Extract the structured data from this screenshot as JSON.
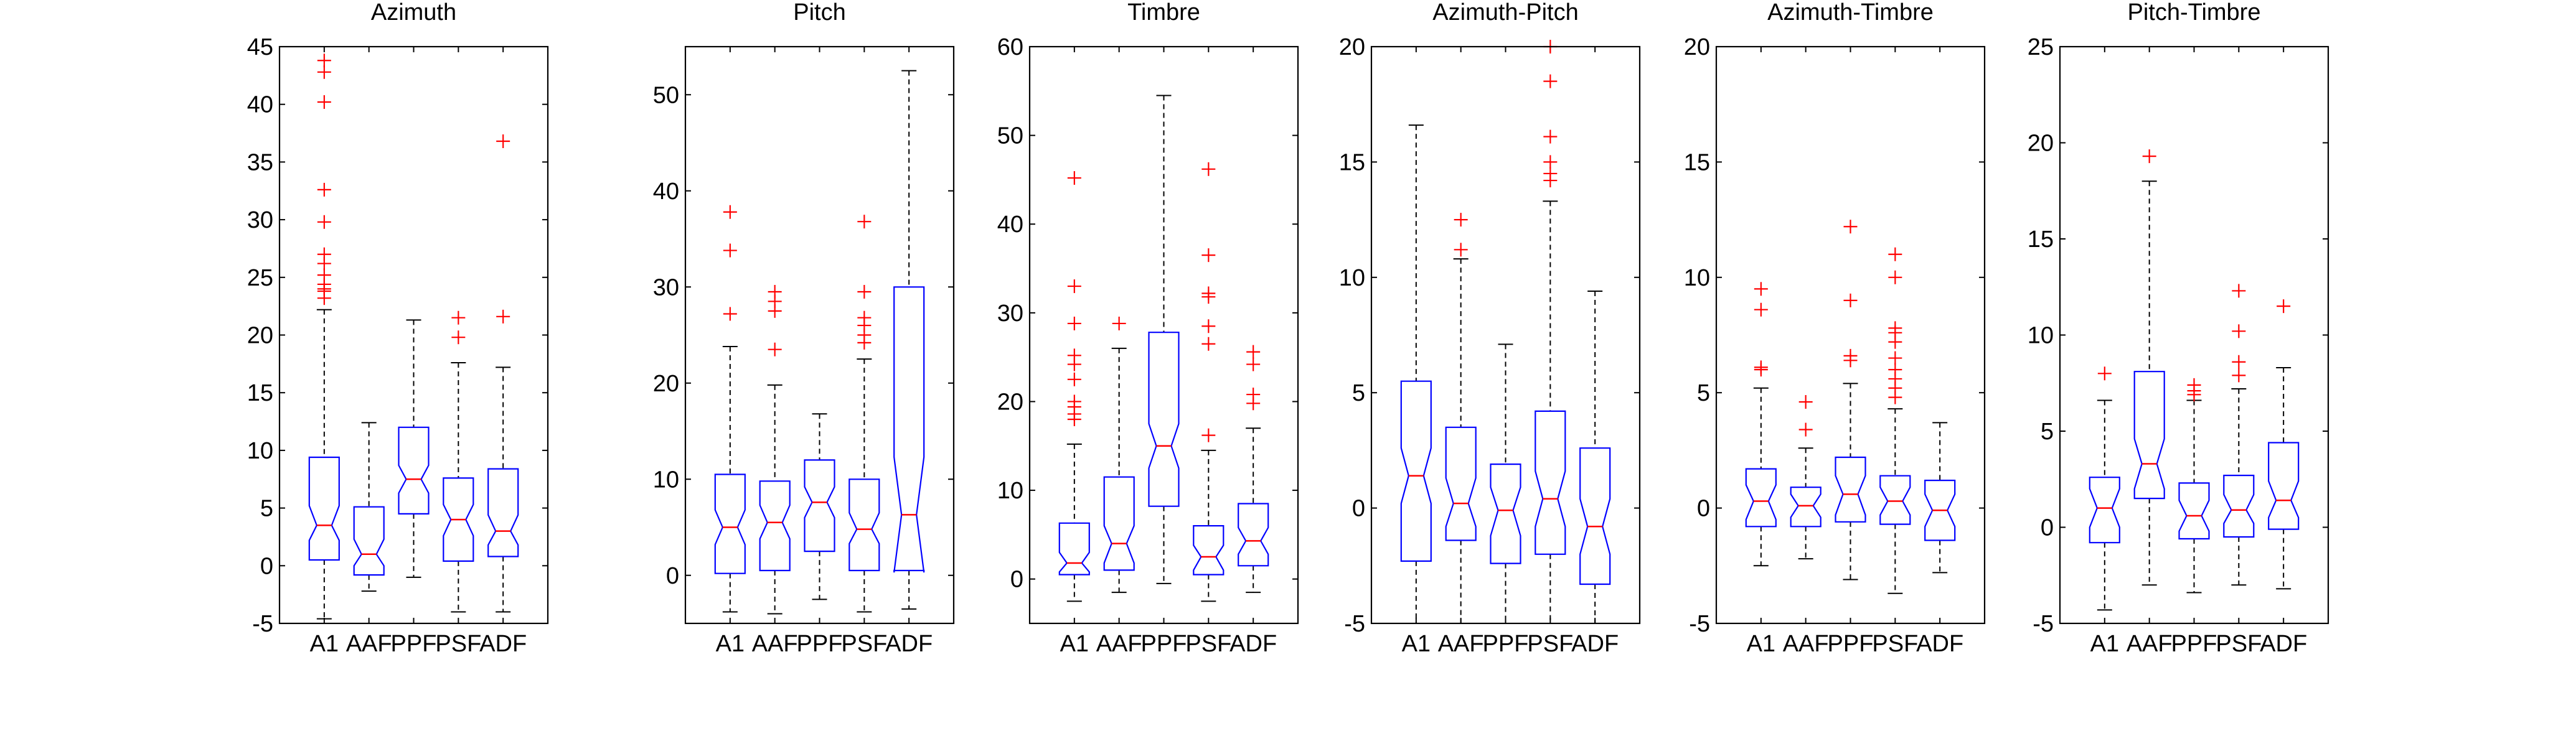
{
  "chart_data": [
    {
      "type": "box",
      "title": "Azimuth",
      "categories": [
        "A1",
        "AAF",
        "PPF",
        "PSF",
        "ADF"
      ],
      "ylim": [
        -5,
        45
      ],
      "yticks": [
        -5,
        0,
        5,
        10,
        15,
        20,
        25,
        30,
        35,
        40,
        45
      ],
      "boxes": [
        {
          "whisker_low": -4.6,
          "q1": 0.5,
          "notch_low": 2.2,
          "median": 3.5,
          "notch_high": 5.2,
          "q3": 9.4,
          "whisker_high": 22.2,
          "outliers": [
            23.2,
            23.8,
            24.0,
            24.4,
            25.2,
            26.2,
            27.0,
            29.8,
            32.6,
            40.2,
            42.8,
            43.8
          ]
        },
        {
          "whisker_low": -2.2,
          "q1": -0.8,
          "notch_low": 0.0,
          "median": 1.0,
          "notch_high": 2.3,
          "q3": 5.1,
          "whisker_high": 12.4,
          "outliers": []
        },
        {
          "whisker_low": -1.0,
          "q1": 4.5,
          "notch_low": 6.3,
          "median": 7.5,
          "notch_high": 8.7,
          "q3": 12.0,
          "whisker_high": 21.3,
          "outliers": []
        },
        {
          "whisker_low": -4.0,
          "q1": 0.4,
          "notch_low": 2.6,
          "median": 4.0,
          "notch_high": 5.3,
          "q3": 7.6,
          "whisker_high": 17.6,
          "outliers": [
            19.8,
            21.5
          ]
        },
        {
          "whisker_low": -4.0,
          "q1": 0.8,
          "notch_low": 1.8,
          "median": 3.0,
          "notch_high": 4.4,
          "q3": 8.4,
          "whisker_high": 17.2,
          "outliers": [
            21.6,
            36.8
          ]
        }
      ]
    },
    {
      "type": "box",
      "title": "Pitch",
      "categories": [
        "A1",
        "AAF",
        "PPF",
        "PSF",
        "ADF"
      ],
      "ylim": [
        -5,
        55
      ],
      "yticks": [
        0,
        10,
        20,
        30,
        40,
        50
      ],
      "boxes": [
        {
          "whisker_low": -3.8,
          "q1": 0.2,
          "notch_low": 3.2,
          "median": 5.0,
          "notch_high": 6.8,
          "q3": 10.5,
          "whisker_high": 23.8,
          "outliers": [
            27.2,
            33.8,
            37.8
          ]
        },
        {
          "whisker_low": -4.0,
          "q1": 0.5,
          "notch_low": 3.8,
          "median": 5.5,
          "notch_high": 7.3,
          "q3": 9.8,
          "whisker_high": 19.8,
          "outliers": [
            23.5,
            27.5,
            28.5,
            29.5
          ]
        },
        {
          "whisker_low": -2.5,
          "q1": 2.5,
          "notch_low": 6.0,
          "median": 7.6,
          "notch_high": 9.2,
          "q3": 12.0,
          "whisker_high": 16.8,
          "outliers": []
        },
        {
          "whisker_low": -3.8,
          "q1": 0.5,
          "notch_low": 3.3,
          "median": 4.8,
          "notch_high": 6.5,
          "q3": 10.0,
          "whisker_high": 22.5,
          "outliers": [
            24.2,
            25.0,
            26.0,
            26.8,
            29.5,
            36.8
          ]
        },
        {
          "whisker_low": -3.5,
          "q1": 0.5,
          "notch_low": 0.3,
          "median": 6.3,
          "notch_high": 12.3,
          "q3": 30.0,
          "whisker_high": 52.5,
          "outliers": []
        }
      ]
    },
    {
      "type": "box",
      "title": "Timbre",
      "categories": [
        "A1",
        "AAF",
        "PPF",
        "PSF",
        "ADF"
      ],
      "ylim": [
        -5,
        60
      ],
      "yticks": [
        0,
        10,
        20,
        30,
        40,
        50,
        60
      ],
      "boxes": [
        {
          "whisker_low": -2.5,
          "q1": 0.5,
          "notch_low": 0.8,
          "median": 1.8,
          "notch_high": 3.0,
          "q3": 6.3,
          "whisker_high": 15.2,
          "outliers": [
            18.0,
            18.6,
            19.4,
            20.0,
            22.5,
            24.2,
            25.2,
            28.8,
            33.0,
            45.2
          ]
        },
        {
          "whisker_low": -1.5,
          "q1": 1.0,
          "notch_low": 1.8,
          "median": 4.0,
          "notch_high": 6.0,
          "q3": 11.5,
          "whisker_high": 26.0,
          "outliers": [
            28.8
          ]
        },
        {
          "whisker_low": -0.5,
          "q1": 8.2,
          "notch_low": 12.5,
          "median": 15.0,
          "notch_high": 17.5,
          "q3": 27.8,
          "whisker_high": 54.5,
          "outliers": []
        },
        {
          "whisker_low": -2.5,
          "q1": 0.5,
          "notch_low": 1.0,
          "median": 2.5,
          "notch_high": 3.8,
          "q3": 6.0,
          "whisker_high": 14.5,
          "outliers": [
            16.2,
            26.5,
            28.5,
            31.8,
            32.2,
            36.5,
            46.2
          ]
        },
        {
          "whisker_low": -1.5,
          "q1": 1.5,
          "notch_low": 2.8,
          "median": 4.3,
          "notch_high": 5.8,
          "q3": 8.5,
          "whisker_high": 17.0,
          "outliers": [
            19.8,
            20.8,
            24.2,
            25.6
          ]
        }
      ]
    },
    {
      "type": "box",
      "title": "Azimuth-Pitch",
      "categories": [
        "A1",
        "AAF",
        "PPF",
        "PSF",
        "ADF"
      ],
      "ylim": [
        -5,
        20
      ],
      "yticks": [
        -5,
        0,
        5,
        10,
        15,
        20
      ],
      "boxes": [
        {
          "whisker_low": -5.0,
          "q1": -2.3,
          "notch_low": 0.2,
          "median": 1.4,
          "notch_high": 2.6,
          "q3": 5.5,
          "whisker_high": 16.6,
          "outliers": []
        },
        {
          "whisker_low": -5.0,
          "q1": -1.4,
          "notch_low": -0.8,
          "median": 0.2,
          "notch_high": 1.3,
          "q3": 3.5,
          "whisker_high": 10.8,
          "outliers": [
            11.2,
            12.5
          ]
        },
        {
          "whisker_low": -5.0,
          "q1": -2.4,
          "notch_low": -1.2,
          "median": -0.1,
          "notch_high": 0.9,
          "q3": 1.9,
          "whisker_high": 7.1,
          "outliers": []
        },
        {
          "whisker_low": -5.0,
          "q1": -2.0,
          "notch_low": -0.8,
          "median": 0.4,
          "notch_high": 1.6,
          "q3": 4.2,
          "whisker_high": 13.3,
          "outliers": [
            14.2,
            14.5,
            15.0,
            16.1,
            18.5,
            20.0
          ]
        },
        {
          "whisker_low": -5.0,
          "q1": -3.3,
          "notch_low": -2.0,
          "median": -0.8,
          "notch_high": 0.4,
          "q3": 2.6,
          "whisker_high": 9.4,
          "outliers": []
        }
      ]
    },
    {
      "type": "box",
      "title": "Azimuth-Timbre",
      "categories": [
        "A1",
        "AAF",
        "PPF",
        "PSF",
        "ADF"
      ],
      "ylim": [
        -5,
        20
      ],
      "yticks": [
        -5,
        0,
        5,
        10,
        15,
        20
      ],
      "boxes": [
        {
          "whisker_low": -2.5,
          "q1": -0.8,
          "notch_low": -0.5,
          "median": 0.3,
          "notch_high": 1.0,
          "q3": 1.7,
          "whisker_high": 5.2,
          "outliers": [
            6.0,
            6.1,
            8.6,
            9.5
          ]
        },
        {
          "whisker_low": -2.2,
          "q1": -0.8,
          "notch_low": -0.4,
          "median": 0.1,
          "notch_high": 0.6,
          "q3": 0.9,
          "whisker_high": 2.6,
          "outliers": [
            3.4,
            4.6
          ]
        },
        {
          "whisker_low": -3.1,
          "q1": -0.6,
          "notch_low": -0.3,
          "median": 0.6,
          "notch_high": 1.4,
          "q3": 2.2,
          "whisker_high": 5.4,
          "outliers": [
            6.4,
            6.6,
            9.0,
            12.2
          ]
        },
        {
          "whisker_low": -3.7,
          "q1": -0.7,
          "notch_low": -0.3,
          "median": 0.3,
          "notch_high": 0.9,
          "q3": 1.4,
          "whisker_high": 4.3,
          "outliers": [
            4.8,
            5.2,
            5.6,
            6.0,
            6.5,
            7.2,
            7.6,
            7.8,
            10.0,
            11.0
          ]
        },
        {
          "whisker_low": -2.8,
          "q1": -1.4,
          "notch_low": -0.8,
          "median": -0.1,
          "notch_high": 0.6,
          "q3": 1.2,
          "whisker_high": 3.7,
          "outliers": []
        }
      ]
    },
    {
      "type": "box",
      "title": "Pitch-Timbre",
      "categories": [
        "A1",
        "AAF",
        "PPF",
        "PSF",
        "ADF"
      ],
      "ylim": [
        -5,
        25
      ],
      "yticks": [
        -5,
        0,
        5,
        10,
        15,
        20,
        25
      ],
      "boxes": [
        {
          "whisker_low": -4.3,
          "q1": -0.8,
          "notch_low": 0.0,
          "median": 1.0,
          "notch_high": 2.0,
          "q3": 2.6,
          "whisker_high": 6.6,
          "outliers": [
            8.0
          ]
        },
        {
          "whisker_low": -3.0,
          "q1": 1.5,
          "notch_low": 2.0,
          "median": 3.3,
          "notch_high": 4.6,
          "q3": 8.1,
          "whisker_high": 18.0,
          "outliers": [
            19.3
          ]
        },
        {
          "whisker_low": -3.4,
          "q1": -0.6,
          "notch_low": -0.2,
          "median": 0.6,
          "notch_high": 1.4,
          "q3": 2.3,
          "whisker_high": 6.6,
          "outliers": [
            6.9,
            7.1,
            7.4
          ]
        },
        {
          "whisker_low": -3.0,
          "q1": -0.5,
          "notch_low": 0.2,
          "median": 0.9,
          "notch_high": 1.7,
          "q3": 2.7,
          "whisker_high": 7.2,
          "outliers": [
            7.9,
            8.6,
            10.2,
            12.3
          ]
        },
        {
          "whisker_low": -3.2,
          "q1": -0.1,
          "notch_low": 0.5,
          "median": 1.4,
          "notch_high": 2.4,
          "q3": 4.4,
          "whisker_high": 8.3,
          "outliers": [
            11.5
          ]
        }
      ]
    }
  ]
}
